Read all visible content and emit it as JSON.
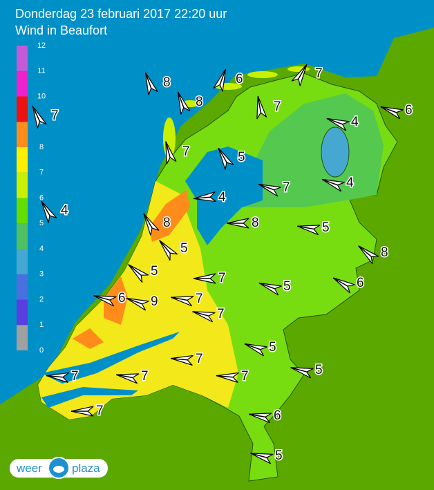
{
  "header": {
    "title": "Donderdag 23 februari 2017 22:20 uur",
    "subtitle": "Wind in Beaufort"
  },
  "legend": {
    "ticks": [
      0,
      1,
      2,
      3,
      4,
      5,
      6,
      7,
      8,
      9,
      10,
      11,
      12
    ],
    "colors": [
      "#a0a0a0",
      "#5a3ee0",
      "#4a70e0",
      "#46a8d0",
      "#50c060",
      "#66dd00",
      "#c8f000",
      "#ffee00",
      "#ff8c1a",
      "#ee1111",
      "#ee22cc",
      "#c45ad8"
    ]
  },
  "stations": [
    8,
    8,
    6,
    7,
    7,
    6,
    4,
    7,
    5,
    7,
    4,
    4,
    4,
    8,
    8,
    5,
    5,
    8,
    5,
    7,
    5,
    6,
    6,
    9,
    7,
    7,
    7,
    5,
    7,
    5,
    7,
    7,
    7,
    7,
    6,
    5
  ],
  "logo": {
    "left": "weer",
    "right": "plaza"
  }
}
